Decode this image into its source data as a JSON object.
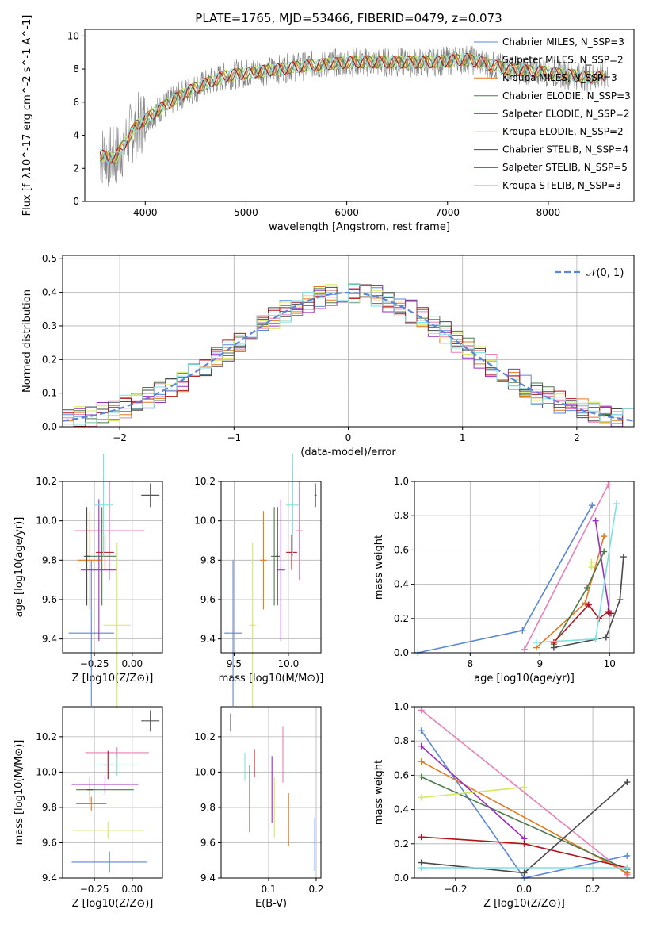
{
  "title": "PLATE=1765, MJD=53466, FIBERID=0479, z=0.073",
  "colors": {
    "chabrier_miles": "#5b86d6",
    "salpeter_miles": "#e87fb8",
    "kroupa_miles": "#e07b20",
    "chabrier_elodie": "#4d7a4d",
    "salpeter_elodie": "#9a2fbf",
    "kroupa_elodie": "#d4e85a",
    "chabrier_stelib": "#4a4a4a",
    "salpeter_stelib": "#b0141a",
    "kroupa_stelib": "#7ee0e0",
    "data": "#7f7f7f",
    "gaussian": "#5b86d6",
    "grid": "#b0b0b0"
  },
  "chart_data": [
    {
      "id": "spectrum",
      "type": "line",
      "title": "PLATE=1765, MJD=53466, FIBERID=0479, z=0.073",
      "xlabel": "wavelength [Angstrom, rest frame]",
      "ylabel": "Flux [f_λ10^-17 erg cm^-2 s^-1 A^-1]",
      "xlim": [
        3400,
        8850
      ],
      "ylim": [
        0,
        10.4
      ],
      "xticks": [
        4000,
        5000,
        6000,
        7000,
        8000
      ],
      "yticks": [
        0,
        2,
        4,
        6,
        8,
        10
      ],
      "legend_position": "right",
      "legend": [
        {
          "label": "Chabrier MILES, N_SSP=3",
          "color_key": "chabrier_miles"
        },
        {
          "label": "Salpeter MILES, N_SSP=2",
          "color_key": "salpeter_miles"
        },
        {
          "label": "Kroupa MILES, N_SSP=3",
          "color_key": "kroupa_miles"
        },
        {
          "label": "Chabrier ELODIE, N_SSP=3",
          "color_key": "chabrier_elodie"
        },
        {
          "label": "Salpeter ELODIE, N_SSP=2",
          "color_key": "salpeter_elodie"
        },
        {
          "label": "Kroupa ELODIE, N_SSP=2",
          "color_key": "kroupa_elodie"
        },
        {
          "label": "Chabrier STELIB, N_SSP=4",
          "color_key": "chabrier_stelib"
        },
        {
          "label": "Salpeter STELIB, N_SSP=5",
          "color_key": "salpeter_stelib"
        },
        {
          "label": "Kroupa STELIB, N_SSP=3",
          "color_key": "kroupa_stelib"
        }
      ],
      "continuum": {
        "x": [
          3550,
          3700,
          3900,
          4100,
          4400,
          4800,
          5200,
          5600,
          6000,
          6400,
          6800,
          7200,
          7600,
          8000,
          8400,
          8600
        ],
        "y": [
          2.8,
          2.6,
          4.5,
          5.4,
          6.6,
          7.6,
          7.9,
          8.2,
          8.4,
          8.4,
          8.4,
          8.6,
          8.0,
          7.8,
          7.5,
          7.6
        ]
      }
    },
    {
      "id": "residuals",
      "type": "bar",
      "xlabel": "(data-model)/error",
      "ylabel": "Normed distribution",
      "xlim": [
        -2.5,
        2.5
      ],
      "ylim": [
        0,
        0.51
      ],
      "xticks": [
        -2,
        -1,
        0,
        1,
        2
      ],
      "yticks": [
        0.0,
        0.1,
        0.2,
        0.3,
        0.4,
        0.5
      ],
      "legend_position": "top-right",
      "legend": [
        {
          "label": "𝒩(0, 1)",
          "color_key": "gaussian",
          "style": "dashed"
        }
      ],
      "bin_width": 0.1
    },
    {
      "id": "age_vs_Z",
      "type": "scatter",
      "xlabel": "Z [log10(Z/Z⊙)]",
      "ylabel": "age [log10(age/yr)]",
      "xlim": [
        -0.46,
        0.2
      ],
      "ylim": [
        9.33,
        10.2
      ],
      "xticks": [
        -0.25,
        0.0
      ],
      "yticks": [
        9.4,
        9.6,
        9.8,
        10.0,
        10.2
      ],
      "points": [
        {
          "k": "chabrier_miles",
          "x": -0.27,
          "y": 9.43,
          "xerr": 0.15,
          "yerr": 0.37
        },
        {
          "k": "salpeter_miles",
          "x": -0.15,
          "y": 9.95,
          "xerr": 0.23,
          "yerr": 0.25
        },
        {
          "k": "kroupa_miles",
          "x": -0.28,
          "y": 9.8,
          "xerr": 0.08,
          "yerr": 0.25
        },
        {
          "k": "chabrier_elodie",
          "x": -0.2,
          "y": 9.82,
          "xerr": 0.1,
          "yerr": 0.25
        },
        {
          "k": "salpeter_elodie",
          "x": -0.22,
          "y": 9.75,
          "xerr": 0.12,
          "yerr": 0.36
        },
        {
          "k": "kroupa_elodie",
          "x": -0.1,
          "y": 9.47,
          "xerr": 0.09,
          "yerr": 0.42
        },
        {
          "k": "chabrier_stelib",
          "x": -0.3,
          "y": 9.82,
          "xerr": 0.02,
          "yerr": 0.25
        },
        {
          "k": "salpeter_stelib",
          "x": -0.18,
          "y": 9.84,
          "xerr": 0.06,
          "yerr": 0.09
        },
        {
          "k": "kroupa_stelib",
          "x": -0.19,
          "y": 10.08,
          "xerr": 0.06,
          "yerr": 0.26
        }
      ],
      "ref_error": {
        "x": 0.12,
        "y": 10.13,
        "xerr": 0.06,
        "yerr": 0.06
      }
    },
    {
      "id": "age_vs_mass",
      "type": "scatter",
      "xlabel": "mass [log10(M/M⊙)]",
      "ylabel": "",
      "xlim": [
        9.38,
        10.3
      ],
      "ylim": [
        9.33,
        10.2
      ],
      "xticks": [
        9.5,
        10.0
      ],
      "yticks": [
        9.4,
        9.6,
        9.8,
        10.0,
        10.2
      ],
      "points": [
        {
          "k": "chabrier_miles",
          "x": 9.49,
          "y": 9.43,
          "xerr": 0.08,
          "yerr": 0.37
        },
        {
          "k": "salpeter_miles",
          "x": 10.1,
          "y": 9.95,
          "xerr": 0.03,
          "yerr": 0.25
        },
        {
          "k": "kroupa_miles",
          "x": 9.77,
          "y": 9.8,
          "xerr": 0.03,
          "yerr": 0.25
        },
        {
          "k": "chabrier_elodie",
          "x": 9.87,
          "y": 9.82,
          "xerr": 0.03,
          "yerr": 0.25
        },
        {
          "k": "salpeter_elodie",
          "x": 9.93,
          "y": 9.75,
          "xerr": 0.04,
          "yerr": 0.36
        },
        {
          "k": "kroupa_elodie",
          "x": 9.67,
          "y": 9.47,
          "xerr": 0.03,
          "yerr": 0.42
        },
        {
          "k": "chabrier_stelib",
          "x": 9.9,
          "y": 9.82,
          "xerr": 0.02,
          "yerr": 0.25
        },
        {
          "k": "salpeter_stelib",
          "x": 10.03,
          "y": 9.84,
          "xerr": 0.05,
          "yerr": 0.09
        },
        {
          "k": "kroupa_stelib",
          "x": 10.04,
          "y": 10.08,
          "xerr": 0.06,
          "yerr": 0.26
        }
      ],
      "ref_error": {
        "x": 10.25,
        "y": 10.13,
        "xerr": 0.01,
        "yerr": 0.06
      }
    },
    {
      "id": "mass_weight_vs_age",
      "type": "line",
      "xlabel": "age [log10(age/yr)]",
      "ylabel": "mass weight",
      "xlim": [
        7.2,
        10.35
      ],
      "ylim": [
        0,
        1.0
      ],
      "xticks": [
        8,
        9,
        10
      ],
      "yticks": [
        0.0,
        0.2,
        0.4,
        0.6,
        0.8,
        1.0
      ],
      "series": [
        {
          "k": "chabrier_miles",
          "x": [
            7.25,
            8.75,
            9.75
          ],
          "y": [
            0.0,
            0.13,
            0.86
          ]
        },
        {
          "k": "salpeter_miles",
          "x": [
            8.78,
            9.98
          ],
          "y": [
            0.02,
            0.98
          ]
        },
        {
          "k": "kroupa_miles",
          "x": [
            8.95,
            9.65,
            9.92
          ],
          "y": [
            0.03,
            0.29,
            0.68
          ]
        },
        {
          "k": "chabrier_elodie",
          "x": [
            9.2,
            9.68,
            9.92
          ],
          "y": [
            0.05,
            0.38,
            0.59
          ]
        },
        {
          "k": "salpeter_elodie",
          "x": [
            9.8,
            10.0
          ],
          "y": [
            0.77,
            0.23
          ]
        },
        {
          "k": "kroupa_elodie",
          "x": [
            9.74,
            9.74
          ],
          "y": [
            0.5,
            0.53
          ]
        },
        {
          "k": "chabrier_stelib",
          "x": [
            9.2,
            9.95,
            10.15,
            10.2
          ],
          "y": [
            0.03,
            0.09,
            0.31,
            0.56
          ]
        },
        {
          "k": "salpeter_stelib",
          "x": [
            9.2,
            9.7,
            9.85,
            9.98,
            10.02
          ],
          "y": [
            0.06,
            0.28,
            0.2,
            0.24,
            0.23
          ]
        },
        {
          "k": "kroupa_stelib",
          "x": [
            8.95,
            9.8,
            10.1
          ],
          "y": [
            0.06,
            0.08,
            0.87
          ]
        }
      ]
    },
    {
      "id": "mass_vs_Z",
      "type": "scatter",
      "xlabel": "Z [log10(Z/Z⊙)]",
      "ylabel": "mass [log10(M/M⊙)]",
      "xlim": [
        -0.46,
        0.2
      ],
      "ylim": [
        9.4,
        10.37
      ],
      "xticks": [
        -0.25,
        0.0
      ],
      "yticks": [
        9.4,
        9.6,
        9.8,
        10.0,
        10.2
      ],
      "points": [
        {
          "k": "chabrier_miles",
          "x": -0.15,
          "y": 9.49,
          "xerr": 0.25,
          "yerr": 0.06
        },
        {
          "k": "salpeter_miles",
          "x": -0.1,
          "y": 10.11,
          "xerr": 0.21,
          "yerr": 0.03
        },
        {
          "k": "kroupa_miles",
          "x": -0.27,
          "y": 9.82,
          "xerr": 0.1,
          "yerr": 0.04
        },
        {
          "k": "chabrier_elodie",
          "x": -0.18,
          "y": 9.9,
          "xerr": 0.19,
          "yerr": 0.03
        },
        {
          "k": "salpeter_elodie",
          "x": -0.18,
          "y": 9.93,
          "xerr": 0.22,
          "yerr": 0.05
        },
        {
          "k": "kroupa_elodie",
          "x": -0.16,
          "y": 9.67,
          "xerr": 0.23,
          "yerr": 0.05
        },
        {
          "k": "chabrier_stelib",
          "x": -0.28,
          "y": 9.9,
          "xerr": 0.02,
          "yerr": 0.07
        },
        {
          "k": "salpeter_stelib",
          "x": -0.16,
          "y": 10.04,
          "xerr": 0.03,
          "yerr": 0.08
        },
        {
          "k": "kroupa_stelib",
          "x": -0.1,
          "y": 10.04,
          "xerr": 0.15,
          "yerr": 0.06
        }
      ],
      "ref_error": {
        "x": 0.12,
        "y": 10.29,
        "xerr": 0.06,
        "yerr": 0.06
      }
    },
    {
      "id": "mass_vs_EBV",
      "type": "scatter",
      "xlabel": "E(B-V)",
      "ylabel": "",
      "xlim": [
        0.0,
        0.21
      ],
      "ylim": [
        9.4,
        10.37
      ],
      "xticks": [
        0.1,
        0.2
      ],
      "yticks": [
        9.4,
        9.6,
        9.8,
        10.0,
        10.2
      ],
      "points": [
        {
          "k": "chabrier_miles",
          "x": 0.197,
          "y": 9.59,
          "xerr": 0.0,
          "yerr": 0.15
        },
        {
          "k": "salpeter_miles",
          "x": 0.13,
          "y": 10.1,
          "xerr": 0.0,
          "yerr": 0.16
        },
        {
          "k": "kroupa_miles",
          "x": 0.142,
          "y": 9.73,
          "xerr": 0.0,
          "yerr": 0.15
        },
        {
          "k": "chabrier_elodie",
          "x": 0.06,
          "y": 9.85,
          "xerr": 0.0,
          "yerr": 0.19
        },
        {
          "k": "salpeter_elodie",
          "x": 0.107,
          "y": 9.9,
          "xerr": 0.0,
          "yerr": 0.19
        },
        {
          "k": "kroupa_elodie",
          "x": 0.112,
          "y": 9.8,
          "xerr": 0.0,
          "yerr": 0.17
        },
        {
          "k": "chabrier_stelib",
          "x": 0.02,
          "y": 10.28,
          "xerr": 0.0,
          "yerr": 0.05
        },
        {
          "k": "salpeter_stelib",
          "x": 0.07,
          "y": 10.05,
          "xerr": 0.0,
          "yerr": 0.08
        },
        {
          "k": "kroupa_stelib",
          "x": 0.05,
          "y": 10.03,
          "xerr": 0.0,
          "yerr": 0.08
        }
      ]
    },
    {
      "id": "mass_weight_vs_Z",
      "type": "line",
      "xlabel": "Z [log10(Z/Z⊙)]",
      "ylabel": "mass weight",
      "xlim": [
        -0.32,
        0.32
      ],
      "ylim": [
        0,
        1.0
      ],
      "xticks": [
        -0.2,
        0.0,
        0.2
      ],
      "yticks": [
        0.0,
        0.2,
        0.4,
        0.6,
        0.8,
        1.0
      ],
      "series": [
        {
          "k": "chabrier_miles",
          "x": [
            -0.3,
            0.0,
            0.3
          ],
          "y": [
            0.86,
            0.0,
            0.13
          ]
        },
        {
          "k": "salpeter_miles",
          "x": [
            -0.3,
            0.3
          ],
          "y": [
            0.98,
            0.02
          ]
        },
        {
          "k": "kroupa_miles",
          "x": [
            -0.3,
            0.3
          ],
          "y": [
            0.68,
            0.03
          ]
        },
        {
          "k": "chabrier_elodie",
          "x": [
            -0.3,
            0.3
          ],
          "y": [
            0.59,
            0.05
          ]
        },
        {
          "k": "salpeter_elodie",
          "x": [
            -0.3,
            0.0
          ],
          "y": [
            0.77,
            0.23
          ]
        },
        {
          "k": "kroupa_elodie",
          "x": [
            -0.3,
            0.0
          ],
          "y": [
            0.47,
            0.53
          ]
        },
        {
          "k": "chabrier_stelib",
          "x": [
            -0.3,
            0.0,
            0.3
          ],
          "y": [
            0.09,
            0.03,
            0.56
          ]
        },
        {
          "k": "salpeter_stelib",
          "x": [
            -0.3,
            0.0,
            0.3
          ],
          "y": [
            0.24,
            0.2,
            0.06
          ]
        },
        {
          "k": "kroupa_stelib",
          "x": [
            -0.3,
            0.3
          ],
          "y": [
            0.06,
            0.06
          ]
        }
      ]
    }
  ]
}
